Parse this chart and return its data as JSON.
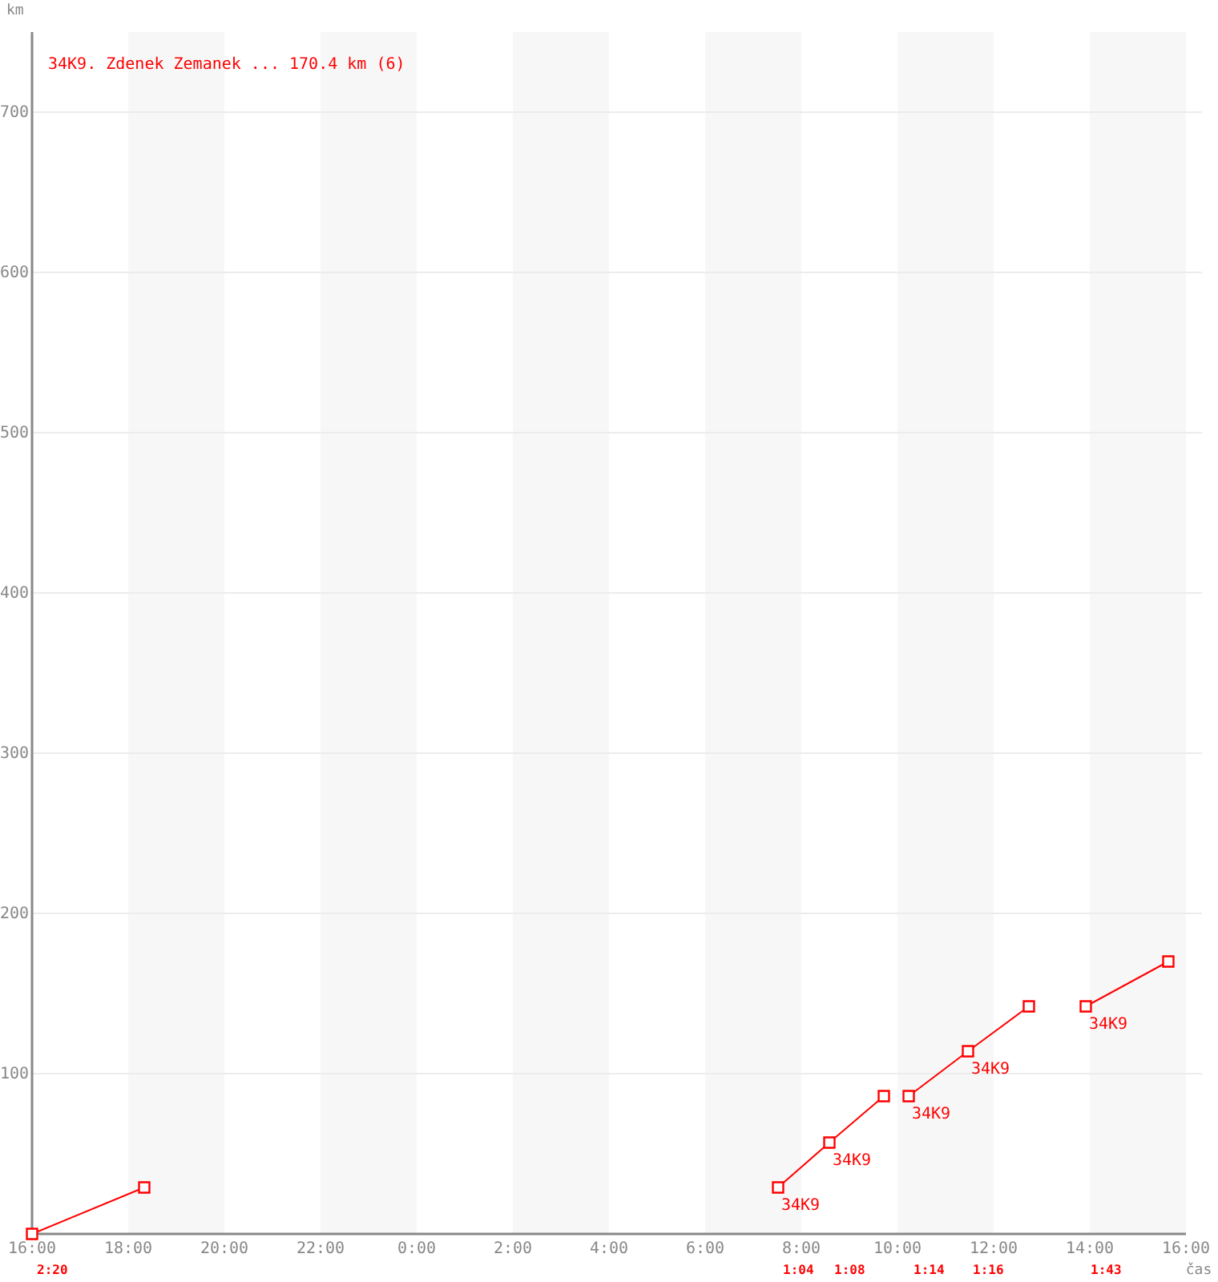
{
  "chart_data": {
    "type": "line",
    "title": "34K9. Zdenek Zemanek ... 170.4 km (6)",
    "xlabel": "čas",
    "ylabel": "km",
    "xlim": [
      "2000-01-01T16:00",
      "2000-01-02T16:00"
    ],
    "ylim": [
      0,
      750
    ],
    "xticks": [
      {
        "value": "2000-01-01T16:00",
        "label": "16:00"
      },
      {
        "value": "2000-01-01T18:00",
        "label": "18:00"
      },
      {
        "value": "2000-01-01T20:00",
        "label": "20:00"
      },
      {
        "value": "2000-01-01T22:00",
        "label": "22:00"
      },
      {
        "value": "2000-01-02T00:00",
        "label": "0:00"
      },
      {
        "value": "2000-01-02T02:00",
        "label": "2:00"
      },
      {
        "value": "2000-01-02T04:00",
        "label": "4:00"
      },
      {
        "value": "2000-01-02T06:00",
        "label": "6:00"
      },
      {
        "value": "2000-01-02T08:00",
        "label": "8:00"
      },
      {
        "value": "2000-01-02T10:00",
        "label": "10:00"
      },
      {
        "value": "2000-01-02T12:00",
        "label": "12:00"
      },
      {
        "value": "2000-01-02T14:00",
        "label": "14:00"
      },
      {
        "value": "2000-01-02T16:00",
        "label": "16:00"
      }
    ],
    "yticks": [
      100,
      200,
      300,
      400,
      500,
      600,
      700
    ],
    "grid": "y",
    "marker": "square",
    "bands": [
      {
        "axis": "x",
        "from": "2000-01-01T18:00",
        "to": "2000-01-01T20:00",
        "color": "#f7f7f7"
      },
      {
        "axis": "x",
        "from": "2000-01-01T22:00",
        "to": "2000-01-02T00:00",
        "color": "#f7f7f7"
      },
      {
        "axis": "x",
        "from": "2000-01-02T02:00",
        "to": "2000-01-02T04:00",
        "color": "#f7f7f7"
      },
      {
        "axis": "x",
        "from": "2000-01-02T06:00",
        "to": "2000-01-02T08:00",
        "color": "#f7f7f7"
      },
      {
        "axis": "x",
        "from": "2000-01-02T10:00",
        "to": "2000-01-02T12:00",
        "color": "#f7f7f7"
      },
      {
        "axis": "x",
        "from": "2000-01-02T14:00",
        "to": "2000-01-02T16:00",
        "color": "#f7f7f7"
      }
    ],
    "series": [
      {
        "color": "#ff0000",
        "x": [
          "2000-01-01T16:00",
          "2000-01-01T18:20"
        ],
        "values": [
          0,
          29
        ]
      },
      {
        "color": "#ff0000",
        "x": [
          "2000-01-02T07:31",
          "2000-01-02T08:35",
          "2000-01-02T09:43"
        ],
        "values": [
          29,
          57,
          86
        ]
      },
      {
        "color": "#ff0000",
        "x": [
          "2000-01-02T10:14",
          "2000-01-02T11:28",
          "2000-01-02T12:44"
        ],
        "values": [
          86,
          114,
          142
        ]
      },
      {
        "color": "#ff0000",
        "x": [
          "2000-01-02T13:55",
          "2000-01-02T15:38"
        ],
        "values": [
          142,
          170
        ]
      }
    ],
    "annotations": [
      "2:20",
      "1:04",
      "1:08",
      "1:14",
      "1:16",
      "1:43",
      {
        "text": "34K9",
        "x": "2000-01-02T07:31",
        "y": 29
      },
      {
        "text": "34K9",
        "x": "2000-01-02T08:35",
        "y": 57
      },
      {
        "text": "34K9",
        "x": "2000-01-02T10:14",
        "y": 86
      },
      {
        "text": "34K9",
        "x": "2000-01-02T11:28",
        "y": 114
      },
      {
        "text": "34K9",
        "x": "2000-01-02T13:55",
        "y": 142
      }
    ]
  }
}
